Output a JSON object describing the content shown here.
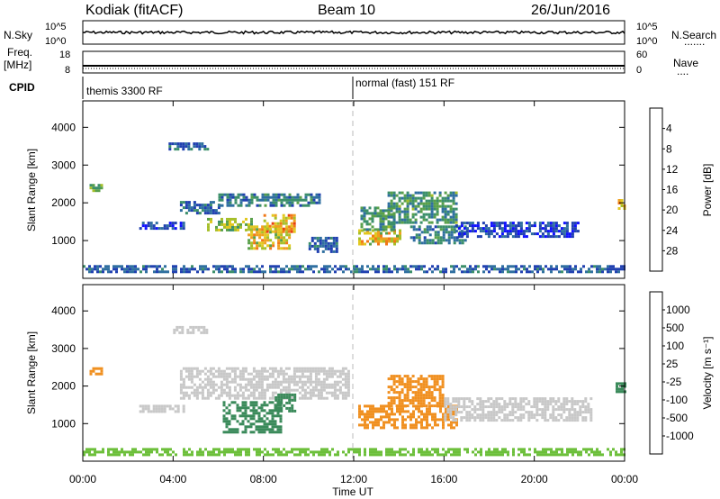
{
  "header": {
    "station": "Kodiak (fitACF)",
    "beam": "Beam 10",
    "date": "26/Jun/2016"
  },
  "nsky_panel": {
    "left_label": "N.Sky",
    "left_ticks": [
      "10^5",
      "10^0"
    ],
    "right_ticks": [
      "10^5",
      "10^0"
    ],
    "right_label": "N.Search",
    "right_legend": "......."
  },
  "freq_panel": {
    "left_label_1": "Freq.",
    "left_label_2": "[MHz]",
    "left_ticks": [
      "18",
      "8"
    ],
    "right_ticks": [
      "60",
      "0"
    ],
    "right_label": "Nave",
    "right_legend": "...."
  },
  "cpid_panel": {
    "label": "CPID",
    "modes": [
      {
        "text": "themis 3300 RF",
        "start_hour": 0
      },
      {
        "text": "normal (fast) 151 RF",
        "start_hour": 12
      }
    ]
  },
  "chart_data": [
    {
      "type": "heatmap",
      "name": "power",
      "ylabel": "Slant Range [km]",
      "yticks": [
        1000,
        2000,
        3000,
        4000
      ],
      "ylim": [
        0,
        4700
      ],
      "xticks": [
        "00:00",
        "04:00",
        "08:00",
        "12:00",
        "16:00",
        "20:00",
        "00:00"
      ],
      "xlim": [
        0,
        24
      ],
      "colorbar": {
        "label": "Power [dB]",
        "ticks": [
          "4",
          "8",
          "12",
          "16",
          "20",
          "24",
          "28"
        ],
        "colors": [
          "#1010ff",
          "#2040b0",
          "#2f6fa0",
          "#3b8f6a",
          "#59a04a",
          "#a6bf2a",
          "#e2c820",
          "#f0a020",
          "#f07818",
          "#e84010",
          "#d01010"
        ]
      },
      "regions": [
        {
          "hours": [
            0.0,
            24.0
          ],
          "ranges": [
            150,
            350
          ],
          "value": 8
        },
        {
          "hours": [
            4.3,
            6.0
          ],
          "ranges": [
            1700,
            2050
          ],
          "value": 8
        },
        {
          "hours": [
            5.5,
            7.5
          ],
          "ranges": [
            1250,
            1600
          ],
          "value": 16
        },
        {
          "hours": [
            6.0,
            10.5
          ],
          "ranges": [
            1900,
            2250
          ],
          "value": 10
        },
        {
          "hours": [
            7.3,
            9.2
          ],
          "ranges": [
            800,
            1400
          ],
          "value": 20
        },
        {
          "hours": [
            8.0,
            9.4
          ],
          "ranges": [
            1200,
            1700
          ],
          "value": 22
        },
        {
          "hours": [
            10.0,
            11.2
          ],
          "ranges": [
            700,
            1100
          ],
          "value": 8
        },
        {
          "hours": [
            2.5,
            4.5
          ],
          "ranges": [
            1300,
            1500
          ],
          "value": 6
        },
        {
          "hours": [
            3.8,
            5.5
          ],
          "ranges": [
            3400,
            3600
          ],
          "value": 8
        },
        {
          "hours": [
            12.2,
            14.0
          ],
          "ranges": [
            900,
            1300
          ],
          "value": 20
        },
        {
          "hours": [
            12.3,
            13.8
          ],
          "ranges": [
            1300,
            1900
          ],
          "value": 12
        },
        {
          "hours": [
            13.5,
            16.5
          ],
          "ranges": [
            1500,
            2300
          ],
          "value": 12
        },
        {
          "hours": [
            14.5,
            17.0
          ],
          "ranges": [
            950,
            1400
          ],
          "value": 10
        },
        {
          "hours": [
            16.5,
            22.0
          ],
          "ranges": [
            1100,
            1500
          ],
          "value": 6
        },
        {
          "hours": [
            0.3,
            0.8
          ],
          "ranges": [
            2300,
            2500
          ],
          "value": 14
        },
        {
          "hours": [
            23.7,
            24.0
          ],
          "ranges": [
            1850,
            2100
          ],
          "value": 20
        }
      ]
    },
    {
      "type": "heatmap",
      "name": "velocity",
      "ylabel": "Slant Range [km]",
      "yticks": [
        1000,
        2000,
        3000,
        4000
      ],
      "ylim": [
        0,
        4700
      ],
      "xticks": [
        "00:00",
        "04:00",
        "08:00",
        "12:00",
        "16:00",
        "20:00",
        "00:00"
      ],
      "xlim": [
        0,
        24
      ],
      "xlabel": "Time UT",
      "colorbar": {
        "label": "Velocity [m s⁻¹]",
        "ticks": [
          "1000",
          "500",
          "100",
          "25",
          "-25",
          "-100",
          "-500",
          "-1000"
        ],
        "colors": [
          "#2030c0",
          "#3060a0",
          "#3a8a5a",
          "#6cbf3a",
          "#c8c8c8",
          "#e8b830",
          "#f09020",
          "#f06010",
          "#e82010"
        ]
      },
      "regions": [
        {
          "hours": [
            0.0,
            24.0
          ],
          "ranges": [
            150,
            350
          ],
          "value": 40
        },
        {
          "hours": [
            4.3,
            11.8
          ],
          "ranges": [
            1700,
            2500
          ],
          "value": 0
        },
        {
          "hours": [
            6.2,
            8.8
          ],
          "ranges": [
            800,
            1600
          ],
          "value": 200
        },
        {
          "hours": [
            8.5,
            9.4
          ],
          "ranges": [
            1300,
            1800
          ],
          "value": 150
        },
        {
          "hours": [
            2.5,
            4.5
          ],
          "ranges": [
            1300,
            1500
          ],
          "value": 0
        },
        {
          "hours": [
            4.0,
            5.5
          ],
          "ranges": [
            3400,
            3600
          ],
          "value": 0
        },
        {
          "hours": [
            12.2,
            16.6
          ],
          "ranges": [
            900,
            1500
          ],
          "value": -150
        },
        {
          "hours": [
            13.5,
            16.0
          ],
          "ranges": [
            1500,
            2300
          ],
          "value": -300
        },
        {
          "hours": [
            16.0,
            22.5
          ],
          "ranges": [
            1100,
            1700
          ],
          "value": 0
        },
        {
          "hours": [
            0.3,
            0.8
          ],
          "ranges": [
            2300,
            2500
          ],
          "value": -400
        },
        {
          "hours": [
            23.6,
            24.0
          ],
          "ranges": [
            1850,
            2100
          ],
          "value": 150
        }
      ]
    }
  ]
}
